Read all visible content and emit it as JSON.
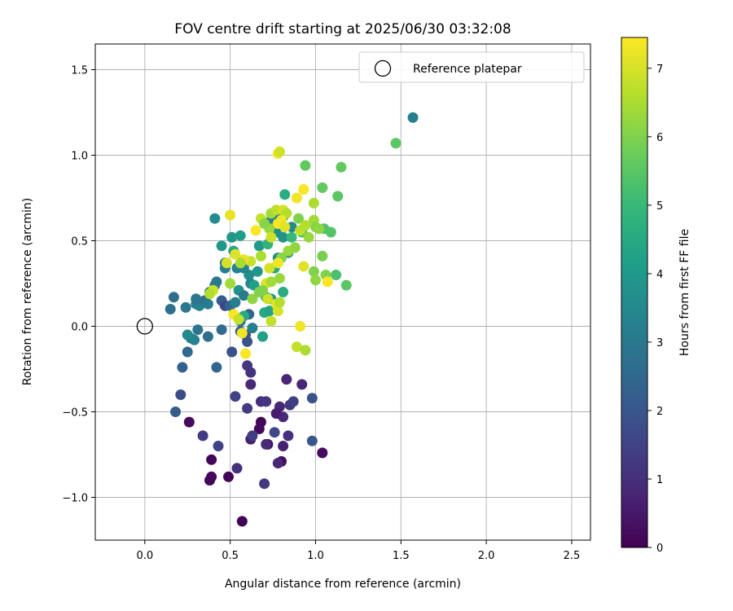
{
  "chart_data": {
    "type": "scatter",
    "title": "FOV centre drift starting at 2025/06/30 03:32:08",
    "xlabel": "Angular distance from reference (arcmin)",
    "ylabel": "Rotation from reference (arcmin)",
    "xlim": [
      -0.29,
      2.61
    ],
    "ylim": [
      -1.25,
      1.65
    ],
    "xticks": [
      0.0,
      0.5,
      1.0,
      1.5,
      2.0,
      2.5
    ],
    "xtick_labels": [
      "0.0",
      "0.5",
      "1.0",
      "1.5",
      "2.0",
      "2.5"
    ],
    "yticks": [
      -1.0,
      -0.5,
      0.0,
      0.5,
      1.0,
      1.5
    ],
    "ytick_labels": [
      "−1.0",
      "−0.5",
      "0.0",
      "0.5",
      "1.0",
      "1.5"
    ],
    "grid": true,
    "legend": {
      "position": "top-right",
      "entries": [
        {
          "label": "Reference platepar",
          "marker": "open-circle",
          "color": "#000000"
        }
      ]
    },
    "reference_point": {
      "x": 0.0,
      "y": 0.0
    },
    "colorbar": {
      "label": "Hours from first FF file",
      "min": 0,
      "max": 7.45,
      "ticks": [
        0,
        1,
        2,
        3,
        4,
        5,
        6,
        7
      ],
      "tick_labels": [
        "0",
        "1",
        "2",
        "3",
        "4",
        "5",
        "6",
        "7"
      ],
      "colormap": "viridis",
      "stops": [
        "#440154",
        "#482878",
        "#3e4989",
        "#31688e",
        "#26828e",
        "#1f9e89",
        "#35b779",
        "#6ece58",
        "#b5de2b",
        "#fde725"
      ]
    },
    "points": [
      {
        "x": 0.57,
        "y": -1.14,
        "c": 0.05
      },
      {
        "x": 0.38,
        "y": -0.9,
        "c": 0.1
      },
      {
        "x": 0.39,
        "y": -0.88,
        "c": 0.15
      },
      {
        "x": 0.49,
        "y": -0.88,
        "c": 0.1
      },
      {
        "x": 0.39,
        "y": -0.78,
        "c": 0.1
      },
      {
        "x": 0.26,
        "y": -0.56,
        "c": 0.2
      },
      {
        "x": 0.68,
        "y": -0.56,
        "c": 0.1
      },
      {
        "x": 0.67,
        "y": -0.6,
        "c": 0.2
      },
      {
        "x": 0.72,
        "y": -0.69,
        "c": 0.2
      },
      {
        "x": 0.8,
        "y": -0.79,
        "c": 0.3
      },
      {
        "x": 1.04,
        "y": -0.74,
        "c": 0.2
      },
      {
        "x": 0.62,
        "y": -0.66,
        "c": 0.6
      },
      {
        "x": 0.81,
        "y": -0.7,
        "c": 0.7
      },
      {
        "x": 0.78,
        "y": -0.8,
        "c": 0.8
      },
      {
        "x": 0.54,
        "y": -0.83,
        "c": 1.0
      },
      {
        "x": 0.7,
        "y": -0.92,
        "c": 1.2
      },
      {
        "x": 0.34,
        "y": -0.64,
        "c": 1.3
      },
      {
        "x": 0.43,
        "y": -0.7,
        "c": 1.5
      },
      {
        "x": 0.63,
        "y": -0.64,
        "c": 1.4
      },
      {
        "x": 0.71,
        "y": -0.69,
        "c": 0.9
      },
      {
        "x": 0.76,
        "y": -0.62,
        "c": 1.6
      },
      {
        "x": 0.84,
        "y": -0.64,
        "c": 1.0
      },
      {
        "x": 0.81,
        "y": -0.53,
        "c": 0.9
      },
      {
        "x": 0.79,
        "y": -0.47,
        "c": 0.8
      },
      {
        "x": 0.77,
        "y": -0.51,
        "c": 0.6
      },
      {
        "x": 0.68,
        "y": -0.44,
        "c": 1.0
      },
      {
        "x": 0.71,
        "y": -0.44,
        "c": 1.2
      },
      {
        "x": 0.6,
        "y": -0.48,
        "c": 1.3
      },
      {
        "x": 0.53,
        "y": -0.41,
        "c": 1.5
      },
      {
        "x": 0.85,
        "y": -0.46,
        "c": 1.2
      },
      {
        "x": 0.87,
        "y": -0.44,
        "c": 1.4
      },
      {
        "x": 0.92,
        "y": -0.34,
        "c": 0.8
      },
      {
        "x": 0.83,
        "y": -0.31,
        "c": 0.8
      },
      {
        "x": 0.62,
        "y": -0.34,
        "c": 0.9
      },
      {
        "x": 0.62,
        "y": -0.27,
        "c": 1.1
      },
      {
        "x": 0.6,
        "y": -0.23,
        "c": 1.2
      },
      {
        "x": 0.98,
        "y": -0.42,
        "c": 1.9
      },
      {
        "x": 0.98,
        "y": -0.67,
        "c": 2.0
      },
      {
        "x": 0.21,
        "y": -0.4,
        "c": 1.8
      },
      {
        "x": 0.18,
        "y": -0.5,
        "c": 2.2
      },
      {
        "x": 0.22,
        "y": -0.24,
        "c": 2.3
      },
      {
        "x": 0.42,
        "y": -0.24,
        "c": 2.4
      },
      {
        "x": 0.51,
        "y": -0.15,
        "c": 1.9
      },
      {
        "x": 0.25,
        "y": -0.15,
        "c": 2.5
      },
      {
        "x": 0.37,
        "y": -0.06,
        "c": 2.7
      },
      {
        "x": 0.27,
        "y": -0.07,
        "c": 3.0
      },
      {
        "x": 0.29,
        "y": -0.08,
        "c": 3.3
      },
      {
        "x": 0.25,
        "y": -0.05,
        "c": 3.5
      },
      {
        "x": 0.31,
        "y": -0.02,
        "c": 2.9
      },
      {
        "x": 0.45,
        "y": -0.02,
        "c": 2.6
      },
      {
        "x": 0.15,
        "y": 0.1,
        "c": 2.7
      },
      {
        "x": 0.17,
        "y": 0.17,
        "c": 2.6
      },
      {
        "x": 0.24,
        "y": 0.11,
        "c": 3.0
      },
      {
        "x": 0.3,
        "y": 0.13,
        "c": 3.2
      },
      {
        "x": 0.32,
        "y": 0.12,
        "c": 3.3
      },
      {
        "x": 0.35,
        "y": 0.15,
        "c": 2.8
      },
      {
        "x": 0.37,
        "y": 0.13,
        "c": 3.1
      },
      {
        "x": 0.38,
        "y": 0.2,
        "c": 3.4
      },
      {
        "x": 0.41,
        "y": 0.24,
        "c": 3.2
      },
      {
        "x": 0.42,
        "y": 0.26,
        "c": 3.0
      },
      {
        "x": 0.3,
        "y": 0.16,
        "c": 2.9
      },
      {
        "x": 0.45,
        "y": 0.15,
        "c": 2.2
      },
      {
        "x": 0.47,
        "y": 0.12,
        "c": 1.6
      },
      {
        "x": 0.5,
        "y": 0.12,
        "c": 2.4
      },
      {
        "x": 0.53,
        "y": 0.14,
        "c": 3.2
      },
      {
        "x": 0.56,
        "y": 0.03,
        "c": 2.6
      },
      {
        "x": 0.56,
        "y": -0.03,
        "c": 2.3
      },
      {
        "x": 0.59,
        "y": -0.05,
        "c": 2.0
      },
      {
        "x": 0.6,
        "y": -0.09,
        "c": 1.9
      },
      {
        "x": 0.61,
        "y": 0.07,
        "c": 2.4
      },
      {
        "x": 0.63,
        "y": -0.01,
        "c": 3.2
      },
      {
        "x": 0.69,
        "y": -0.06,
        "c": 4.2
      },
      {
        "x": 0.58,
        "y": 0.06,
        "c": 4.5
      },
      {
        "x": 0.55,
        "y": 0.21,
        "c": 3.8
      },
      {
        "x": 0.58,
        "y": 0.18,
        "c": 3.1
      },
      {
        "x": 0.62,
        "y": 0.25,
        "c": 3.3
      },
      {
        "x": 0.64,
        "y": 0.24,
        "c": 4.2
      },
      {
        "x": 0.7,
        "y": 0.08,
        "c": 4.5
      },
      {
        "x": 0.71,
        "y": 0.17,
        "c": 4.8
      },
      {
        "x": 0.73,
        "y": 0.09,
        "c": 4.3
      },
      {
        "x": 0.74,
        "y": 0.16,
        "c": 4.0
      },
      {
        "x": 0.81,
        "y": 0.2,
        "c": 4.6
      },
      {
        "x": 0.66,
        "y": 0.32,
        "c": 3.9
      },
      {
        "x": 0.61,
        "y": 0.3,
        "c": 3.6
      },
      {
        "x": 0.58,
        "y": 0.34,
        "c": 3.4
      },
      {
        "x": 0.54,
        "y": 0.34,
        "c": 3.3
      },
      {
        "x": 0.47,
        "y": 0.34,
        "c": 3.2
      },
      {
        "x": 0.47,
        "y": 0.37,
        "c": 3.1
      },
      {
        "x": 0.45,
        "y": 0.47,
        "c": 3.9
      },
      {
        "x": 0.51,
        "y": 0.52,
        "c": 3.9
      },
      {
        "x": 0.56,
        "y": 0.53,
        "c": 4.1
      },
      {
        "x": 0.41,
        "y": 0.63,
        "c": 3.6
      },
      {
        "x": 0.52,
        "y": 0.44,
        "c": 4.4
      },
      {
        "x": 0.67,
        "y": 0.47,
        "c": 4.0
      },
      {
        "x": 0.72,
        "y": 0.48,
        "c": 4.8
      },
      {
        "x": 0.76,
        "y": 0.34,
        "c": 4.5
      },
      {
        "x": 0.78,
        "y": 0.4,
        "c": 3.6
      },
      {
        "x": 0.81,
        "y": 0.52,
        "c": 3.8
      },
      {
        "x": 0.84,
        "y": 0.43,
        "c": 3.7
      },
      {
        "x": 0.86,
        "y": 0.58,
        "c": 3.5
      },
      {
        "x": 0.74,
        "y": 0.62,
        "c": 3.4
      },
      {
        "x": 0.76,
        "y": 0.64,
        "c": 3.2
      },
      {
        "x": 0.77,
        "y": 0.55,
        "c": 3.7
      },
      {
        "x": 0.81,
        "y": 0.64,
        "c": 3.9
      },
      {
        "x": 0.82,
        "y": 0.77,
        "c": 4.6
      },
      {
        "x": 0.94,
        "y": 0.94,
        "c": 5.6
      },
      {
        "x": 1.15,
        "y": 0.93,
        "c": 5.6
      },
      {
        "x": 1.04,
        "y": 0.81,
        "c": 5.6
      },
      {
        "x": 1.13,
        "y": 0.76,
        "c": 5.5
      },
      {
        "x": 1.05,
        "y": 0.57,
        "c": 5.4
      },
      {
        "x": 1.09,
        "y": 0.55,
        "c": 5.4
      },
      {
        "x": 1.12,
        "y": 0.3,
        "c": 5.3
      },
      {
        "x": 1.18,
        "y": 0.24,
        "c": 5.5
      },
      {
        "x": 0.92,
        "y": 0.55,
        "c": 5.2
      },
      {
        "x": 0.86,
        "y": 0.52,
        "c": 5.0
      },
      {
        "x": 1.47,
        "y": 1.07,
        "c": 5.5
      },
      {
        "x": 1.57,
        "y": 1.22,
        "c": 3.2
      },
      {
        "x": 0.78,
        "y": 1.01,
        "c": 7.3
      },
      {
        "x": 0.79,
        "y": 1.02,
        "c": 6.9
      },
      {
        "x": 0.5,
        "y": 0.65,
        "c": 7.2
      },
      {
        "x": 0.68,
        "y": 0.63,
        "c": 6.8
      },
      {
        "x": 0.74,
        "y": 0.66,
        "c": 6.4
      },
      {
        "x": 0.77,
        "y": 0.68,
        "c": 6.7
      },
      {
        "x": 0.81,
        "y": 0.68,
        "c": 7.0
      },
      {
        "x": 0.83,
        "y": 0.66,
        "c": 6.6
      },
      {
        "x": 0.78,
        "y": 0.6,
        "c": 7.4
      },
      {
        "x": 0.8,
        "y": 0.62,
        "c": 7.3
      },
      {
        "x": 0.82,
        "y": 0.58,
        "c": 7.1
      },
      {
        "x": 0.73,
        "y": 0.57,
        "c": 6.3
      },
      {
        "x": 0.7,
        "y": 0.6,
        "c": 6.1
      },
      {
        "x": 0.65,
        "y": 0.56,
        "c": 7.4
      },
      {
        "x": 0.74,
        "y": 0.52,
        "c": 6.9
      },
      {
        "x": 0.89,
        "y": 0.75,
        "c": 7.3
      },
      {
        "x": 0.93,
        "y": 0.8,
        "c": 7.4
      },
      {
        "x": 0.99,
        "y": 0.72,
        "c": 6.5
      },
      {
        "x": 0.9,
        "y": 0.63,
        "c": 6.0
      },
      {
        "x": 0.91,
        "y": 0.56,
        "c": 6.7
      },
      {
        "x": 0.94,
        "y": 0.59,
        "c": 6.6
      },
      {
        "x": 0.96,
        "y": 0.52,
        "c": 6.3
      },
      {
        "x": 0.99,
        "y": 0.62,
        "c": 6.4
      },
      {
        "x": 1.0,
        "y": 0.58,
        "c": 6.1
      },
      {
        "x": 1.02,
        "y": 0.57,
        "c": 6.2
      },
      {
        "x": 1.04,
        "y": 0.41,
        "c": 5.9
      },
      {
        "x": 0.99,
        "y": 0.32,
        "c": 6.0
      },
      {
        "x": 1.0,
        "y": 0.27,
        "c": 6.2
      },
      {
        "x": 1.06,
        "y": 0.3,
        "c": 6.0
      },
      {
        "x": 1.07,
        "y": 0.26,
        "c": 7.4
      },
      {
        "x": 0.93,
        "y": 0.35,
        "c": 7.1
      },
      {
        "x": 0.88,
        "y": 0.46,
        "c": 6.2
      },
      {
        "x": 0.84,
        "y": 0.44,
        "c": 6.3
      },
      {
        "x": 0.8,
        "y": 0.4,
        "c": 6.1
      },
      {
        "x": 0.78,
        "y": 0.37,
        "c": 7.3
      },
      {
        "x": 0.73,
        "y": 0.34,
        "c": 7.0
      },
      {
        "x": 0.68,
        "y": 0.41,
        "c": 6.5
      },
      {
        "x": 0.62,
        "y": 0.38,
        "c": 6.8
      },
      {
        "x": 0.58,
        "y": 0.39,
        "c": 7.2
      },
      {
        "x": 0.53,
        "y": 0.42,
        "c": 7.1
      },
      {
        "x": 0.48,
        "y": 0.37,
        "c": 7.0
      },
      {
        "x": 0.4,
        "y": 0.21,
        "c": 6.9
      },
      {
        "x": 0.38,
        "y": 0.19,
        "c": 6.6
      },
      {
        "x": 0.5,
        "y": 0.25,
        "c": 6.4
      },
      {
        "x": 0.52,
        "y": 0.07,
        "c": 7.4
      },
      {
        "x": 0.55,
        "y": 0.04,
        "c": 6.8
      },
      {
        "x": 0.57,
        "y": -0.04,
        "c": 7.3
      },
      {
        "x": 0.59,
        "y": -0.16,
        "c": 7.4
      },
      {
        "x": 0.63,
        "y": 0.16,
        "c": 6.2
      },
      {
        "x": 0.67,
        "y": 0.2,
        "c": 6.0
      },
      {
        "x": 0.71,
        "y": 0.25,
        "c": 7.1
      },
      {
        "x": 0.74,
        "y": 0.26,
        "c": 6.4
      },
      {
        "x": 0.74,
        "y": 0.03,
        "c": 6.8
      },
      {
        "x": 0.77,
        "y": 0.13,
        "c": 7.2
      },
      {
        "x": 0.78,
        "y": 0.09,
        "c": 7.0
      },
      {
        "x": 0.79,
        "y": 0.14,
        "c": 6.6
      },
      {
        "x": 0.79,
        "y": 0.28,
        "c": 6.3
      },
      {
        "x": 0.91,
        "y": 0.0,
        "c": 7.3
      },
      {
        "x": 0.89,
        "y": -0.12,
        "c": 6.8
      },
      {
        "x": 0.94,
        "y": -0.14,
        "c": 6.5
      },
      {
        "x": 0.72,
        "y": 0.16,
        "c": 6.9
      },
      {
        "x": 0.69,
        "y": 0.21,
        "c": 6.0
      },
      {
        "x": 0.56,
        "y": 0.37,
        "c": 6.5
      }
    ]
  }
}
